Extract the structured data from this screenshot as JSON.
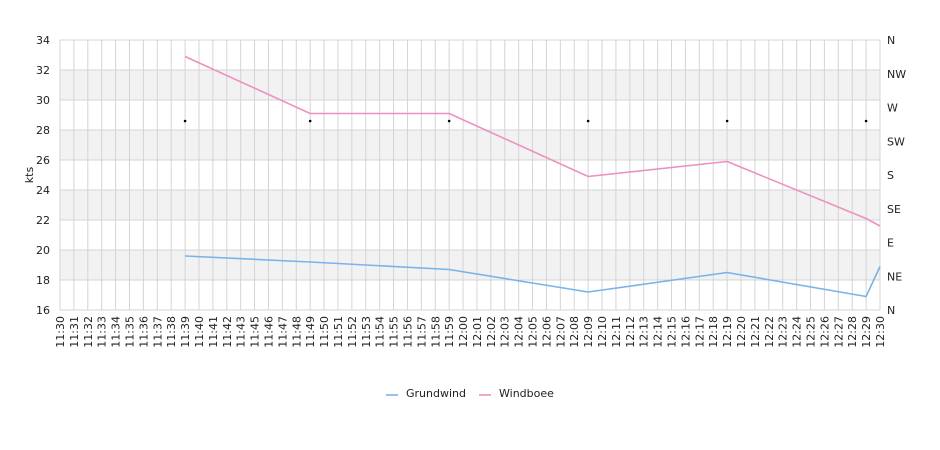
{
  "chart_data": {
    "type": "line",
    "ylabel": "kts",
    "ylim": [
      16,
      34
    ],
    "y_ticks": [
      "16",
      "18",
      "20",
      "22",
      "24",
      "26",
      "28",
      "30",
      "32",
      "34"
    ],
    "x_categories": [
      "11:30",
      "11:31",
      "11:32",
      "11:33",
      "11:34",
      "11:35",
      "11:36",
      "11:37",
      "11:38",
      "11:39",
      "11:40",
      "11:41",
      "11:42",
      "11:43",
      "11:45",
      "11:46",
      "11:47",
      "11:48",
      "11:49",
      "11:50",
      "11:51",
      "11:52",
      "11:53",
      "11:54",
      "11:55",
      "11:56",
      "11:57",
      "11:58",
      "11:59",
      "12:00",
      "12:01",
      "12:02",
      "12:03",
      "12:04",
      "12:05",
      "12:06",
      "12:07",
      "12:08",
      "12:09",
      "12:10",
      "12:11",
      "12:12",
      "12:13",
      "12:14",
      "12:15",
      "12:16",
      "12:17",
      "12:18",
      "12:19",
      "12:20",
      "12:21",
      "12:22",
      "12:23",
      "12:24",
      "12:25",
      "12:26",
      "12:27",
      "12:28",
      "12:29",
      "12:30"
    ],
    "direction_axis": [
      "N",
      "NE",
      "E",
      "SE",
      "S",
      "SW",
      "W",
      "NW",
      "N"
    ],
    "colors": {
      "Grundwind": "#7ab3ea",
      "Windboee": "#ee90c0",
      "band": "#f2f2f2",
      "grid": "#d4d4d4"
    },
    "legend_position": "bottom",
    "series": [
      {
        "name": "Grundwind",
        "points": [
          {
            "x": "11:39",
            "y": 19.6
          },
          {
            "x": "11:49",
            "y": 19.2
          },
          {
            "x": "11:59",
            "y": 18.7
          },
          {
            "x": "12:09",
            "y": 17.2
          },
          {
            "x": "12:19",
            "y": 18.5
          },
          {
            "x": "12:29",
            "y": 16.9
          },
          {
            "x": "12:30",
            "y": 18.9
          }
        ]
      },
      {
        "name": "Windboee",
        "points": [
          {
            "x": "11:39",
            "y": 32.9
          },
          {
            "x": "11:49",
            "y": 29.1
          },
          {
            "x": "11:59",
            "y": 29.1
          },
          {
            "x": "12:09",
            "y": 24.9
          },
          {
            "x": "12:19",
            "y": 25.9
          },
          {
            "x": "12:29",
            "y": 22.1
          },
          {
            "x": "12:30",
            "y": 21.6
          }
        ]
      }
    ],
    "direction_markers": [
      {
        "x": "11:39",
        "y": 28.6
      },
      {
        "x": "11:49",
        "y": 28.6
      },
      {
        "x": "11:59",
        "y": 28.6
      },
      {
        "x": "12:09",
        "y": 28.6
      },
      {
        "x": "12:19",
        "y": 28.6
      },
      {
        "x": "12:29",
        "y": 28.6
      }
    ]
  }
}
